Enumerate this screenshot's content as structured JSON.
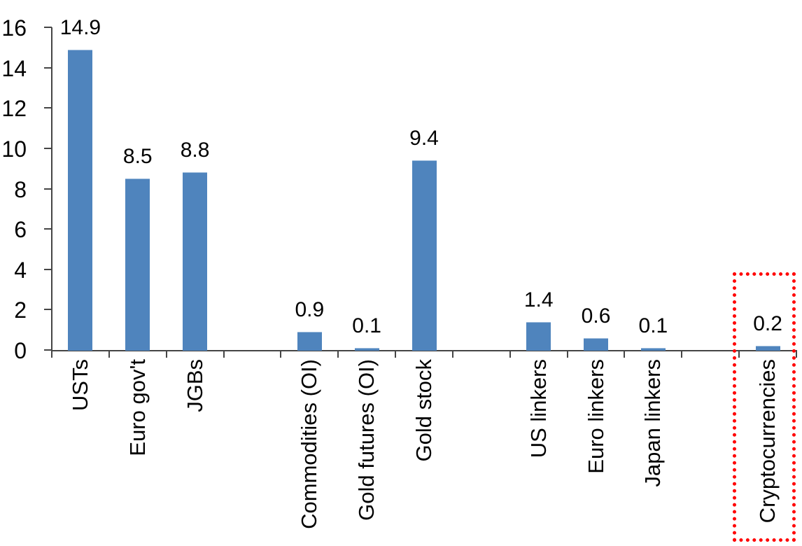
{
  "chart_data": {
    "type": "bar",
    "title": "",
    "xlabel": "",
    "ylabel": "",
    "categories": [
      "USTs",
      "Euro gov't",
      "JGBs",
      "Commodities (OI)",
      "Gold futures (OI)",
      "Gold stock",
      "US linkers",
      "Euro linkers",
      "Japan linkers",
      "Cryptocurrencies"
    ],
    "values": [
      14.9,
      8.5,
      8.8,
      0.9,
      0.1,
      9.4,
      1.4,
      0.6,
      0.1,
      0.2
    ],
    "data_labels": [
      "14.9",
      "8.5",
      "8.8",
      "0.9",
      "0.1",
      "9.4",
      "1.4",
      "0.6",
      "0.1",
      "0.2"
    ],
    "slots": [
      0,
      1,
      2,
      4,
      5,
      6,
      8,
      9,
      10,
      12
    ],
    "total_slots": 13,
    "ylim": [
      0,
      16
    ],
    "ytick_step": 2,
    "ytick_labels": [
      "0",
      "2",
      "4",
      "6",
      "8",
      "10",
      "12",
      "14",
      "16"
    ],
    "grid": false,
    "legend": false,
    "colors": {
      "bar": "#4F84BD",
      "axis": "#454545",
      "text": "#000000",
      "highlight": "#FF0000"
    },
    "annotations": [
      {
        "kind": "red-dotted-box",
        "around_category": "Cryptocurrencies"
      }
    ]
  }
}
